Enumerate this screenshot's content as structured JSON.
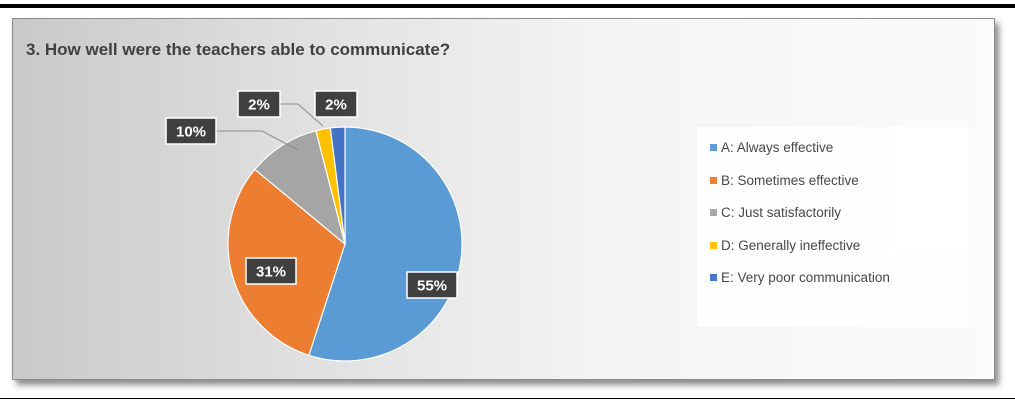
{
  "chart_data": {
    "type": "pie",
    "title": "3. How well were the teachers able to communicate?",
    "categories": [
      "A: Always effective",
      "B:  Sometimes effective",
      "C: Just satisfactorily",
      "D: Generally ineffective",
      "E:  Very poor communication"
    ],
    "values": [
      55,
      31,
      10,
      2,
      2
    ],
    "data_labels": [
      "55%",
      "31%",
      "10%",
      "2%",
      "2%"
    ],
    "colors": [
      "#5b9bd5",
      "#ed7d31",
      "#a5a5a5",
      "#ffc000",
      "#4472c4"
    ],
    "legend_position": "right"
  }
}
